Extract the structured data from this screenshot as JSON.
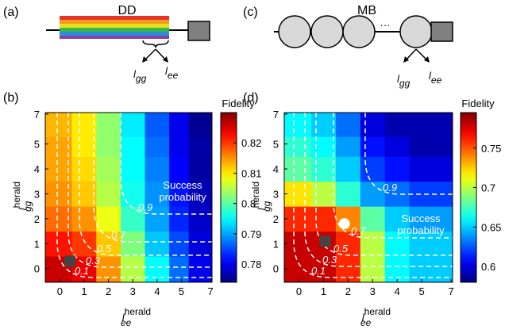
{
  "panels": [
    {
      "letter": "(a)",
      "title": "DD",
      "labels": [
        {
          "base": "l",
          "sub": "gg"
        },
        {
          "base": "l",
          "sub": "ee"
        }
      ]
    },
    {
      "letter": "(c)",
      "title": "MB",
      "labels": [
        {
          "base": "l",
          "sub": "gg"
        },
        {
          "base": "l",
          "sub": "ee"
        }
      ]
    }
  ],
  "chart_data": [
    {
      "type": "heatmap",
      "letter": "(b)",
      "x_label": {
        "base": "l",
        "sub": "ee",
        "sup": "herald"
      },
      "y_label": {
        "base": "l",
        "sub": "gg",
        "sup": "herald"
      },
      "xlim": [
        -0.6,
        7.1
      ],
      "ylim": [
        -0.55,
        7.1
      ],
      "xticks": [
        0,
        1,
        2,
        3,
        4,
        5,
        7
      ],
      "yticks": [
        0,
        1,
        2,
        3,
        4,
        5,
        7
      ],
      "x_edges": [
        -0.6,
        0.5,
        1.5,
        2.5,
        3.5,
        4.5,
        5.5,
        7.1
      ],
      "y_edges": [
        -0.55,
        0.5,
        1.5,
        2.5,
        3.5,
        4.5,
        5.5,
        7.1
      ],
      "z": [
        [
          0.826,
          0.824,
          0.815,
          0.805,
          0.795,
          0.787,
          0.78
        ],
        [
          0.822,
          0.82,
          0.812,
          0.802,
          0.792,
          0.785,
          0.779
        ],
        [
          0.817,
          0.815,
          0.808,
          0.798,
          0.79,
          0.783,
          0.778
        ],
        [
          0.815,
          0.812,
          0.805,
          0.796,
          0.789,
          0.782,
          0.777
        ],
        [
          0.814,
          0.811,
          0.804,
          0.795,
          0.788,
          0.781,
          0.776
        ],
        [
          0.814,
          0.81,
          0.803,
          0.795,
          0.787,
          0.78,
          0.776
        ],
        [
          0.813,
          0.81,
          0.803,
          0.794,
          0.786,
          0.78,
          0.775
        ]
      ],
      "colorbar_title": "Fidelity",
      "clim": [
        0.774,
        0.83
      ],
      "cticks": [
        0.78,
        0.79,
        0.8,
        0.81,
        0.82
      ],
      "contours": [
        0.1,
        0.3,
        0.5,
        0.7,
        0.9
      ],
      "annotation": [
        "Success",
        "probability"
      ],
      "markers": [
        {
          "x": 0.42,
          "y": 0.3,
          "shape": "square",
          "color": "#444444"
        }
      ]
    },
    {
      "type": "heatmap",
      "letter": "(d)",
      "x_label": {
        "base": "l",
        "sub": "ee",
        "sup": "herald"
      },
      "y_label": {
        "base": "l",
        "sub": "gg",
        "sup": "herald"
      },
      "xlim": [
        -0.6,
        7.1
      ],
      "ylim": [
        -0.55,
        7.1
      ],
      "xticks": [
        0,
        1,
        2,
        3,
        4,
        5,
        7
      ],
      "yticks": [
        0,
        1,
        2,
        3,
        4,
        5,
        7
      ],
      "x_edges": [
        -0.6,
        0.5,
        1.5,
        2.5,
        3.5,
        4.5,
        5.5,
        7.1
      ],
      "y_edges": [
        -0.55,
        0.5,
        1.5,
        2.5,
        3.5,
        4.5,
        5.5,
        7.1
      ],
      "z": [
        [
          0.78,
          0.78,
          0.76,
          0.7,
          0.66,
          0.65,
          0.65
        ],
        [
          0.78,
          0.78,
          0.76,
          0.7,
          0.66,
          0.65,
          0.65
        ],
        [
          0.76,
          0.76,
          0.74,
          0.68,
          0.65,
          0.64,
          0.64
        ],
        [
          0.72,
          0.7,
          0.67,
          0.64,
          0.63,
          0.62,
          0.62
        ],
        [
          0.68,
          0.67,
          0.65,
          0.62,
          0.61,
          0.6,
          0.6
        ],
        [
          0.67,
          0.66,
          0.64,
          0.61,
          0.6,
          0.59,
          0.59
        ],
        [
          0.66,
          0.65,
          0.63,
          0.6,
          0.59,
          0.59,
          0.59
        ]
      ],
      "colorbar_title": "Fidelity",
      "clim": [
        0.58,
        0.795
      ],
      "cticks": [
        0.6,
        0.65,
        0.7,
        0.75
      ],
      "contours": [
        0.1,
        0.3,
        0.5,
        0.7,
        0.9
      ],
      "annotation": [
        "Success",
        "probability"
      ],
      "markers": [
        {
          "x": 1.07,
          "y": 1.1,
          "shape": "square",
          "color": "#444444"
        },
        {
          "x": 1.85,
          "y": 1.8,
          "shape": "circle",
          "color": "#ffffff"
        }
      ]
    }
  ]
}
